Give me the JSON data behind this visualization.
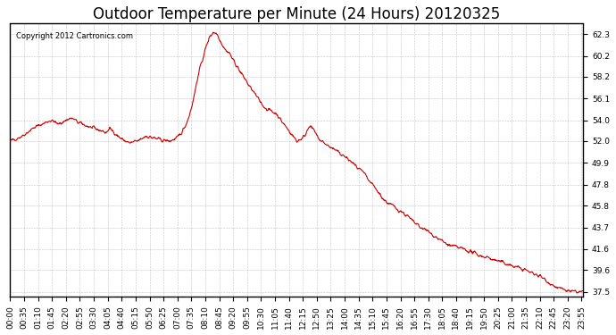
{
  "title": "Outdoor Temperature per Minute (24 Hours) 20120325",
  "copyright_text": "Copyright 2012 Cartronics.com",
  "line_color": "#cc0000",
  "background_color": "#ffffff",
  "plot_bg_color": "#ffffff",
  "grid_color": "#aaaaaa",
  "yticks": [
    37.5,
    39.6,
    41.6,
    43.7,
    45.8,
    47.8,
    49.9,
    52.0,
    54.0,
    56.1,
    58.2,
    60.2,
    62.3
  ],
  "ylim": [
    37.0,
    63.3
  ],
  "title_fontsize": 12,
  "tick_fontsize": 6.5,
  "xtick_labels": [
    "00:00",
    "00:35",
    "01:10",
    "01:45",
    "02:20",
    "02:55",
    "03:30",
    "04:05",
    "04:40",
    "05:15",
    "05:50",
    "06:25",
    "07:00",
    "07:35",
    "08:10",
    "08:45",
    "09:20",
    "09:55",
    "10:30",
    "11:05",
    "11:40",
    "12:15",
    "12:50",
    "13:25",
    "14:00",
    "14:35",
    "15:10",
    "15:45",
    "16:20",
    "16:55",
    "17:30",
    "18:05",
    "18:40",
    "19:15",
    "19:50",
    "20:25",
    "21:00",
    "21:35",
    "22:10",
    "22:45",
    "23:20",
    "23:55"
  ],
  "control_points_x": [
    0,
    30,
    60,
    90,
    100,
    110,
    120,
    140,
    150,
    160,
    170,
    190,
    210,
    230,
    240,
    250,
    260,
    270,
    280,
    290,
    300,
    320,
    330,
    340,
    360,
    380,
    400,
    420,
    430,
    440,
    450,
    460,
    470,
    480,
    490,
    500,
    510,
    520,
    530,
    540,
    550,
    560,
    570,
    580,
    590,
    600,
    610,
    620,
    630,
    640,
    650,
    660,
    670,
    680,
    690,
    700,
    710,
    720,
    730,
    740,
    750,
    760,
    770,
    780,
    790,
    800,
    810,
    820,
    830,
    840,
    850,
    860,
    870,
    880,
    890,
    900,
    910,
    920,
    930,
    940,
    950,
    960,
    970,
    980,
    990,
    1000,
    1010,
    1020,
    1030,
    1040,
    1050,
    1060,
    1080,
    1100,
    1120,
    1140,
    1160,
    1180,
    1200,
    1220,
    1240,
    1260,
    1280,
    1300,
    1310,
    1320,
    1330,
    1340,
    1350,
    1360,
    1370,
    1380,
    1390,
    1400,
    1410,
    1420,
    1430,
    1439
  ],
  "control_points_y": [
    52.0,
    52.5,
    53.3,
    53.8,
    54.0,
    53.9,
    53.6,
    54.0,
    54.2,
    54.1,
    53.8,
    53.5,
    53.2,
    53.0,
    52.8,
    53.2,
    52.9,
    52.5,
    52.2,
    52.0,
    51.8,
    52.0,
    52.2,
    52.5,
    52.3,
    52.1,
    52.0,
    52.3,
    52.8,
    53.5,
    54.5,
    56.0,
    58.0,
    59.5,
    60.8,
    62.0,
    62.5,
    62.3,
    61.5,
    60.8,
    60.5,
    59.8,
    59.2,
    58.5,
    58.0,
    57.3,
    56.8,
    56.2,
    55.7,
    55.2,
    55.0,
    54.8,
    54.6,
    54.0,
    53.5,
    53.0,
    52.5,
    52.0,
    52.2,
    52.5,
    53.5,
    53.2,
    52.5,
    52.0,
    51.8,
    51.5,
    51.3,
    51.0,
    50.8,
    50.5,
    50.2,
    49.9,
    49.5,
    49.2,
    48.8,
    48.2,
    47.8,
    47.3,
    46.8,
    46.3,
    46.0,
    45.8,
    45.5,
    45.3,
    45.0,
    44.7,
    44.3,
    44.0,
    43.7,
    43.5,
    43.3,
    43.0,
    42.5,
    42.0,
    41.8,
    41.6,
    41.3,
    41.0,
    40.8,
    40.5,
    40.3,
    40.0,
    39.8,
    39.5,
    39.3,
    39.2,
    39.0,
    38.8,
    38.5,
    38.2,
    38.0,
    37.8,
    37.7,
    37.6,
    37.5,
    37.5,
    37.5,
    37.5
  ]
}
